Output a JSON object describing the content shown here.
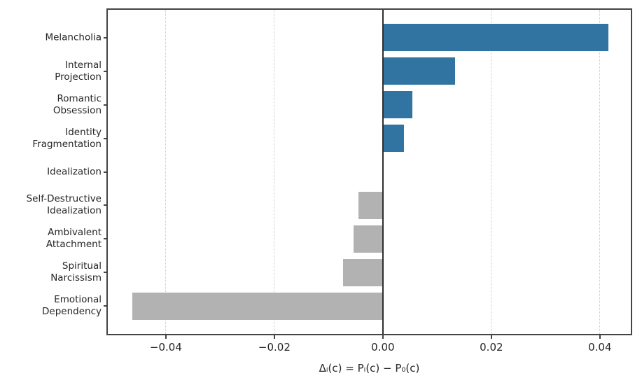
{
  "chart_data": {
    "type": "bar",
    "orientation": "horizontal",
    "title": "",
    "xlabel": "Δᵢ(c) = Pᵢ(c) − P₀(c)",
    "ylabel": "",
    "categories": [
      [
        "Melancholia"
      ],
      [
        "Internal",
        "Projection"
      ],
      [
        "Romantic",
        "Obsession"
      ],
      [
        "Identity",
        "Fragmentation"
      ],
      [
        "Idealization"
      ],
      [
        "Self-Destructive",
        "Idealization"
      ],
      [
        "Ambivalent",
        "Attachment"
      ],
      [
        "Spiritual",
        "Narcissism"
      ],
      [
        "Emotional",
        "Dependency"
      ]
    ],
    "values": [
      0.0416,
      0.0133,
      0.0055,
      0.0039,
      0.0,
      -0.0045,
      -0.0054,
      -0.0074,
      -0.0462
    ],
    "xlim": [
      -0.0507,
      0.0457
    ],
    "xticks": [
      {
        "value": -0.04,
        "label": "−0.04"
      },
      {
        "value": -0.02,
        "label": "−0.02"
      },
      {
        "value": 0.0,
        "label": "0.00"
      },
      {
        "value": 0.02,
        "label": "0.02"
      },
      {
        "value": 0.04,
        "label": "0.04"
      }
    ],
    "grid": "vertical-dotted",
    "legend": "none",
    "colors": {
      "positive_bar": "#3274A1",
      "negative_bar": "#B2B2B2",
      "zero_line": "#2E2E2E",
      "grid_line": "#C8C8C8",
      "spine": "#444444",
      "text": "#262626"
    }
  }
}
